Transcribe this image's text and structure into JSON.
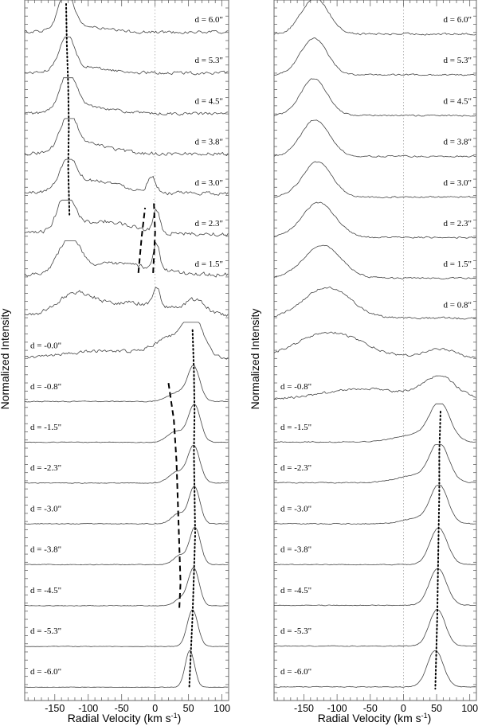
{
  "chart_data": [
    {
      "type": "line",
      "panel": "left",
      "xlabel_main": "Radial Velocity (km s",
      "xlabel_sup": "-1",
      "xlabel_close": ")",
      "ylabel": "Normalized Intensity",
      "xlim": [
        -195,
        110
      ],
      "xticks": [
        -150,
        -100,
        -50,
        0,
        50,
        100
      ],
      "zero_line": true,
      "offsets": [
        "6.0",
        "5.3",
        "4.5",
        "3.8",
        "3.0",
        "2.3",
        "1.5",
        "0.8",
        "-0.0",
        "-0.8",
        "-1.5",
        "-2.3",
        "-3.0",
        "-3.8",
        "-4.5",
        "-5.3",
        "-6.0"
      ],
      "labels": [
        "d = 6.0\"",
        "d = 5.3\"",
        "d = 4.5\"",
        "d = 3.8\"",
        "d = 3.0\"",
        "d = 2.3\"",
        "d = 1.5\"",
        "",
        "d = -0.0\"",
        "d = -0.8\"",
        "d = -1.5\"",
        "d = -2.3\"",
        "d = -3.0\"",
        "d = -3.8\"",
        "d = -4.5\"",
        "d = -5.3\"",
        "d = -6.0\""
      ],
      "spectra": [
        {
          "comps": [
            [
              -133,
              11,
              1.0
            ],
            [
              -110,
              35,
              0.15
            ]
          ],
          "base": 0.1,
          "noise": 0.06
        },
        {
          "comps": [
            [
              -132,
              11,
              0.95
            ],
            [
              -105,
              35,
              0.15
            ]
          ],
          "base": 0.1,
          "noise": 0.06
        },
        {
          "comps": [
            [
              -130,
              12,
              1.0
            ],
            [
              -100,
              35,
              0.2
            ]
          ],
          "base": 0.1,
          "noise": 0.06
        },
        {
          "comps": [
            [
              -129,
              12,
              0.95
            ],
            [
              -100,
              35,
              0.25
            ]
          ],
          "base": 0.12,
          "noise": 0.07
        },
        {
          "comps": [
            [
              -130,
              12,
              0.8
            ],
            [
              -5,
              6,
              0.45
            ],
            [
              -90,
              40,
              0.35
            ]
          ],
          "base": 0.15,
          "noise": 0.07
        },
        {
          "comps": [
            [
              -133,
              12,
              1.0
            ],
            [
              2,
              5,
              0.6
            ],
            [
              -80,
              45,
              0.35
            ]
          ],
          "base": 0.15,
          "noise": 0.08
        },
        {
          "comps": [
            [
              -128,
              16,
              0.9
            ],
            [
              2,
              5,
              0.7
            ],
            [
              -60,
              55,
              0.3
            ]
          ],
          "base": 0.15,
          "noise": 0.08
        },
        {
          "comps": [
            [
              -120,
              25,
              0.5
            ],
            [
              2,
              5,
              0.55
            ],
            [
              -40,
              60,
              0.35
            ],
            [
              60,
              15,
              0.35
            ]
          ],
          "base": 0.15,
          "noise": 0.08
        },
        {
          "comps": [
            [
              58,
              14,
              1.0
            ],
            [
              25,
              25,
              0.5
            ],
            [
              -70,
              60,
              0.2
            ]
          ],
          "base": 0.1,
          "noise": 0.06
        },
        {
          "comps": [
            [
              58,
              9,
              0.9
            ],
            [
              35,
              15,
              0.25
            ]
          ],
          "base": 0.03,
          "noise": 0.02
        },
        {
          "comps": [
            [
              59,
              9,
              1.0
            ],
            [
              32,
              13,
              0.3
            ]
          ],
          "base": 0.03,
          "noise": 0.015
        },
        {
          "comps": [
            [
              58,
              9,
              1.0
            ],
            [
              33,
              12,
              0.3
            ]
          ],
          "base": 0.03,
          "noise": 0.015
        },
        {
          "comps": [
            [
              59,
              8,
              1.0
            ],
            [
              36,
              11,
              0.28
            ]
          ],
          "base": 0.03,
          "noise": 0.015
        },
        {
          "comps": [
            [
              60,
              8,
              1.0
            ],
            [
              38,
              10,
              0.25
            ]
          ],
          "base": 0.03,
          "noise": 0.015
        },
        {
          "comps": [
            [
              58,
              8,
              1.0
            ],
            [
              40,
              10,
              0.2
            ]
          ],
          "base": 0.02,
          "noise": 0.012
        },
        {
          "comps": [
            [
              56,
              8,
              1.0
            ]
          ],
          "base": 0.02,
          "noise": 0.01
        },
        {
          "comps": [
            [
              52,
              7,
              1.0
            ]
          ],
          "base": 0.02,
          "noise": 0.01
        }
      ],
      "dotted_main": [
        [
          -133,
          0
        ],
        [
          -132,
          1
        ],
        [
          -130,
          2
        ],
        [
          -129,
          3
        ],
        [
          -130,
          4
        ],
        [
          -128,
          5.2
        ]
      ],
      "dashed_neg": [
        [
          -25,
          6.6
        ],
        [
          -20,
          5.7
        ],
        [
          -15,
          5.0
        ]
      ],
      "dashed_pos": [
        [
          -3,
          6.6
        ],
        [
          0,
          5.6
        ],
        [
          -2,
          4.8
        ]
      ],
      "dotted_red": [
        [
          56,
          8.0
        ],
        [
          58,
          9.0
        ],
        [
          59,
          10
        ],
        [
          58,
          11
        ],
        [
          59,
          12
        ],
        [
          60,
          13
        ],
        [
          58,
          14
        ],
        [
          56,
          15
        ],
        [
          51,
          16.8
        ]
      ],
      "dashed_wing": [
        [
          20,
          9.3
        ],
        [
          28,
          10.2
        ],
        [
          32,
          11.2
        ],
        [
          34,
          12.2
        ],
        [
          36,
          13.2
        ],
        [
          38,
          14.2
        ],
        [
          36,
          14.9
        ]
      ]
    },
    {
      "type": "line",
      "panel": "right",
      "xlabel_main": "Radial Velocity (km s",
      "xlabel_sup": "-1",
      "xlabel_close": ")",
      "ylabel": "Normalized Intensity",
      "xlim": [
        -195,
        110
      ],
      "xticks": [
        -150,
        -100,
        -50,
        0,
        50,
        100
      ],
      "zero_line": true,
      "offsets": [
        "6.0",
        "5.3",
        "4.5",
        "3.8",
        "3.0",
        "2.3",
        "1.5",
        "0.8",
        "-0.0",
        "-0.8",
        "-1.5",
        "-2.3",
        "-3.0",
        "-3.8",
        "-4.5",
        "-5.3",
        "-6.0"
      ],
      "labels": [
        "d = 6.0\"",
        "d = 5.3\"",
        "d = 4.5\"",
        "d = 3.8\"",
        "d = 3.0\"",
        "d = 2.3\"",
        "d = 1.5\"",
        "d = 0.8\"",
        "",
        "d = -0.8\"",
        "d = -1.5\"",
        "d = -2.3\"",
        "d = -3.0\"",
        "d = -3.8\"",
        "d = -4.5\"",
        "d = -5.3\"",
        "d = -6.0\""
      ],
      "spectra": [
        {
          "comps": [
            [
              -133,
              20,
              1.0
            ]
          ],
          "base": 0.05,
          "noise": 0.04
        },
        {
          "comps": [
            [
              -135,
              20,
              1.0
            ]
          ],
          "base": 0.05,
          "noise": 0.03
        },
        {
          "comps": [
            [
              -135,
              20,
              1.0
            ]
          ],
          "base": 0.05,
          "noise": 0.03
        },
        {
          "comps": [
            [
              -133,
              21,
              1.0
            ]
          ],
          "base": 0.05,
          "noise": 0.03
        },
        {
          "comps": [
            [
              -130,
              22,
              0.95
            ]
          ],
          "base": 0.05,
          "noise": 0.03
        },
        {
          "comps": [
            [
              -128,
              25,
              0.95
            ]
          ],
          "base": 0.06,
          "noise": 0.03
        },
        {
          "comps": [
            [
              -122,
              28,
              0.9
            ]
          ],
          "base": 0.06,
          "noise": 0.03
        },
        {
          "comps": [
            [
              -115,
              35,
              0.85
            ]
          ],
          "base": 0.08,
          "noise": 0.04
        },
        {
          "comps": [
            [
              -110,
              50,
              0.7
            ],
            [
              55,
              25,
              0.25
            ]
          ],
          "base": 0.1,
          "noise": 0.05
        },
        {
          "comps": [
            [
              -60,
              60,
              0.3
            ],
            [
              55,
              25,
              0.6
            ]
          ],
          "base": 0.08,
          "noise": 0.05
        },
        {
          "comps": [
            [
              55,
              15,
              1.0
            ],
            [
              20,
              30,
              0.2
            ]
          ],
          "base": 0.04,
          "noise": 0.02
        },
        {
          "comps": [
            [
              54,
              14,
              1.0
            ],
            [
              20,
              30,
              0.2
            ]
          ],
          "base": 0.04,
          "noise": 0.02
        },
        {
          "comps": [
            [
              54,
              13,
              1.0
            ],
            [
              25,
              25,
              0.15
            ]
          ],
          "base": 0.03,
          "noise": 0.02
        },
        {
          "comps": [
            [
              53,
              13,
              1.0
            ]
          ],
          "base": 0.03,
          "noise": 0.015
        },
        {
          "comps": [
            [
              52,
              13,
              1.0
            ]
          ],
          "base": 0.03,
          "noise": 0.015
        },
        {
          "comps": [
            [
              51,
              12,
              1.0
            ]
          ],
          "base": 0.03,
          "noise": 0.015
        },
        {
          "comps": [
            [
              48,
              12,
              1.0
            ]
          ],
          "base": 0.03,
          "noise": 0.015
        }
      ],
      "dotted_main": [],
      "dashed_neg": [],
      "dashed_pos": [],
      "dotted_red": [
        [
          56,
          10
        ],
        [
          54,
          11
        ],
        [
          54,
          12
        ],
        [
          53,
          13
        ],
        [
          52,
          14
        ],
        [
          51,
          15
        ],
        [
          48,
          16.8
        ]
      ],
      "dashed_wing": []
    }
  ]
}
